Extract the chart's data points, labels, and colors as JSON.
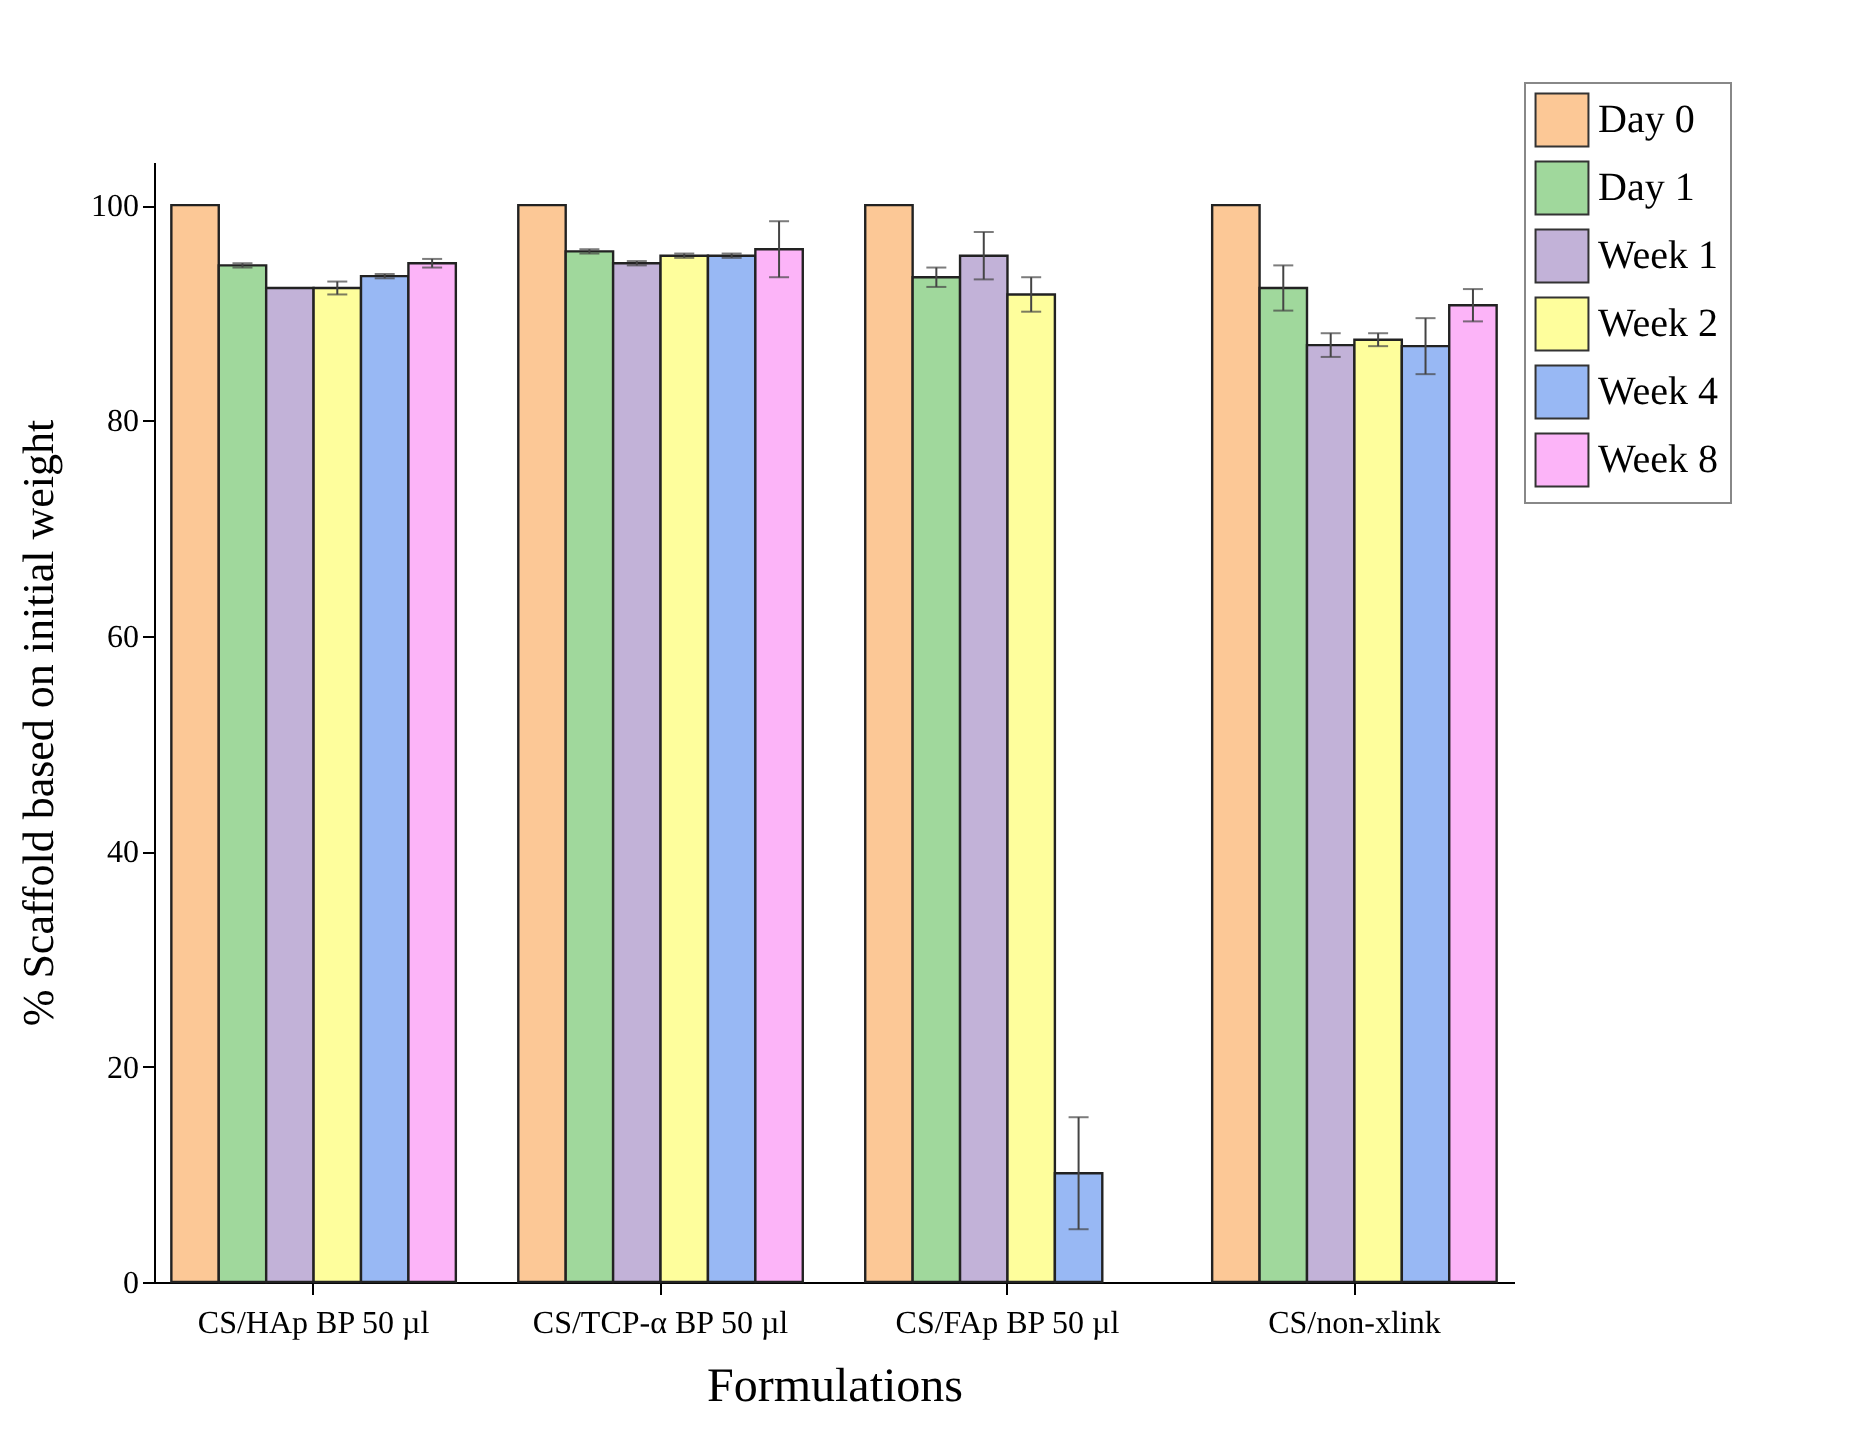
{
  "chart_data": {
    "type": "bar",
    "xlabel": "Formulations",
    "ylabel": "% Scaffold based on initial weight",
    "categories": [
      "CS/HAp BP 50 µl",
      "CS/TCP-α BP 50 µl",
      "CS/FAp BP 50 µl",
      "CS/non-xlink"
    ],
    "series": [
      {
        "name": "Day 0",
        "color": "#fcc896",
        "values": [
          100,
          100,
          100,
          100
        ]
      },
      {
        "name": "Day 1",
        "color": "#a0d89c",
        "values": [
          94.4,
          95.7,
          93.3,
          92.3
        ],
        "errors": [
          0.2,
          0.2,
          0.9,
          2.1
        ]
      },
      {
        "name": "Week 1",
        "color": "#c2b2d8",
        "values": [
          92.3,
          94.6,
          95.3,
          87.0
        ],
        "errors": [
          null,
          0.2,
          2.2,
          1.1
        ]
      },
      {
        "name": "Week 2",
        "color": "#fefe9c",
        "values": [
          92.3,
          95.3,
          91.7,
          87.5
        ],
        "errors": [
          0.6,
          0.2,
          1.6,
          0.6
        ]
      },
      {
        "name": "Week 4",
        "color": "#98b8f4",
        "values": [
          93.4,
          95.3,
          10.1,
          86.9
        ],
        "errors": [
          0.2,
          0.2,
          5.2,
          2.6
        ]
      },
      {
        "name": "Week 8",
        "color": "#fcb4f8",
        "values": [
          94.6,
          95.9,
          null,
          90.7
        ],
        "errors": [
          0.4,
          2.6,
          null,
          1.5
        ]
      }
    ],
    "ylim": [
      0,
      104
    ],
    "yticks": [
      0,
      20,
      40,
      60,
      80,
      100
    ],
    "grid": false,
    "legend": "top right"
  }
}
